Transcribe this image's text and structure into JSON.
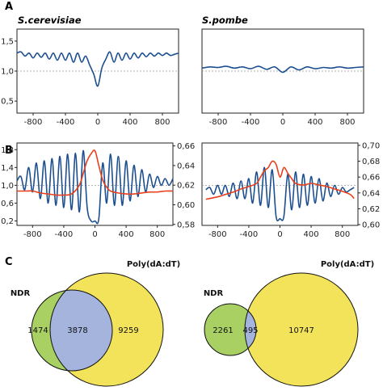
{
  "panels": {
    "a": "A",
    "b": "B",
    "c": "C"
  },
  "species": {
    "left": "S.cerevisiae",
    "right": "S.pombe"
  },
  "colors": {
    "blue": "#1b4f8f",
    "red": "#e8401c",
    "yellow": "#f3e35a",
    "green": "#a8d063",
    "overlap": "#a5b4dd",
    "refline": "#999999"
  },
  "chart_data": [
    {
      "id": "A-left",
      "type": "line",
      "x_ticks": [
        -800,
        -400,
        0,
        400,
        800
      ],
      "xlim": [
        -1000,
        1000
      ],
      "y_ticks": [
        "0,5",
        "1,0",
        "1,5"
      ],
      "ylim": [
        0.3,
        1.7
      ],
      "ref_line": 1.0,
      "series": [
        {
          "color": "blue",
          "x": [
            -1000,
            -950,
            -900,
            -850,
            -800,
            -750,
            -700,
            -650,
            -600,
            -550,
            -500,
            -450,
            -400,
            -350,
            -300,
            -250,
            -200,
            -150,
            -100,
            -50,
            0,
            50,
            100,
            150,
            200,
            250,
            300,
            350,
            400,
            450,
            500,
            550,
            600,
            650,
            700,
            750,
            800,
            850,
            900,
            950,
            1000
          ],
          "y": [
            1.3,
            1.32,
            1.25,
            1.3,
            1.22,
            1.3,
            1.23,
            1.3,
            1.2,
            1.3,
            1.18,
            1.3,
            1.18,
            1.3,
            1.15,
            1.3,
            1.15,
            1.25,
            1.1,
            0.95,
            0.75,
            1.05,
            1.2,
            1.32,
            1.15,
            1.3,
            1.18,
            1.3,
            1.2,
            1.3,
            1.22,
            1.3,
            1.24,
            1.3,
            1.25,
            1.3,
            1.26,
            1.3,
            1.26,
            1.28,
            1.3
          ]
        }
      ]
    },
    {
      "id": "A-right",
      "type": "line",
      "x_ticks": [
        -800,
        -400,
        0,
        400,
        800
      ],
      "xlim": [
        -1000,
        1000
      ],
      "y_ticks": [],
      "ylim": [
        0.3,
        1.7
      ],
      "ref_line": 1.0,
      "series": [
        {
          "color": "blue",
          "x": [
            -1000,
            -900,
            -800,
            -700,
            -600,
            -500,
            -400,
            -300,
            -200,
            -100,
            0,
            100,
            200,
            300,
            400,
            500,
            600,
            700,
            800,
            900,
            1000
          ],
          "y": [
            1.05,
            1.07,
            1.06,
            1.08,
            1.05,
            1.07,
            1.04,
            1.08,
            1.03,
            1.07,
            0.98,
            1.07,
            1.02,
            1.07,
            1.04,
            1.06,
            1.05,
            1.07,
            1.05,
            1.06,
            1.07
          ]
        }
      ]
    },
    {
      "id": "B-left",
      "type": "line",
      "x_ticks": [
        -800,
        -400,
        0,
        400,
        800
      ],
      "xlim": [
        -1000,
        1000
      ],
      "y_ticks": [
        "0,2",
        "0,6",
        "1,0",
        "1,4",
        "1,8"
      ],
      "ylim": [
        0.1,
        1.95
      ],
      "y2_ticks": [
        "0,58",
        "0,60",
        "0,62",
        "0,64",
        "0,66"
      ],
      "y2lim": [
        0.579,
        0.663
      ],
      "ref_line": 1.0,
      "series": [
        {
          "color": "blue",
          "axis": "left",
          "x": [
            -1000,
            -950,
            -900,
            -850,
            -800,
            -750,
            -700,
            -650,
            -600,
            -550,
            -500,
            -450,
            -400,
            -350,
            -300,
            -250,
            -200,
            -150,
            -100,
            -50,
            0,
            50,
            100,
            150,
            200,
            250,
            300,
            350,
            400,
            450,
            500,
            550,
            600,
            650,
            700,
            750,
            800,
            850,
            900,
            950,
            1000
          ],
          "y": [
            1.1,
            1.2,
            0.9,
            1.4,
            0.85,
            1.5,
            0.7,
            1.55,
            0.6,
            1.6,
            0.55,
            1.65,
            0.5,
            1.7,
            0.45,
            1.72,
            0.4,
            1.78,
            0.5,
            0.2,
            0.2,
            0.25,
            1.5,
            0.6,
            1.7,
            0.55,
            1.65,
            0.55,
            1.55,
            0.65,
            1.45,
            0.75,
            1.35,
            0.85,
            1.25,
            0.95,
            1.2,
            1.0,
            1.15,
            1.0,
            1.15
          ]
        },
        {
          "color": "red",
          "axis": "right",
          "x": [
            -1000,
            -900,
            -800,
            -700,
            -600,
            -500,
            -400,
            -300,
            -200,
            -150,
            -100,
            -50,
            0,
            50,
            100,
            150,
            200,
            300,
            400,
            500,
            600,
            700,
            800,
            900,
            1000
          ],
          "y": [
            0.614,
            0.614,
            0.614,
            0.612,
            0.611,
            0.61,
            0.61,
            0.611,
            0.62,
            0.632,
            0.645,
            0.652,
            0.655,
            0.64,
            0.625,
            0.618,
            0.614,
            0.612,
            0.611,
            0.611,
            0.612,
            0.613,
            0.613,
            0.614,
            0.614
          ]
        }
      ]
    },
    {
      "id": "B-right",
      "type": "line",
      "x_ticks": [
        -800,
        -400,
        0,
        400,
        800
      ],
      "xlim": [
        -1000,
        1000
      ],
      "y_ticks": [],
      "ylim": [
        0.1,
        1.95
      ],
      "y2_ticks": [
        "0,60",
        "0,62",
        "0,64",
        "0,66",
        "0,68",
        "0,70"
      ],
      "y2lim": [
        0.599,
        0.703
      ],
      "ref_line": 1.0,
      "series": [
        {
          "color": "blue",
          "axis": "left",
          "x": [
            -950,
            -900,
            -850,
            -800,
            -750,
            -700,
            -650,
            -600,
            -550,
            -500,
            -450,
            -400,
            -350,
            -300,
            -250,
            -200,
            -150,
            -100,
            -50,
            0,
            50,
            100,
            150,
            200,
            250,
            300,
            350,
            400,
            450,
            500,
            550,
            600,
            650,
            700,
            750,
            800,
            850,
            900,
            950
          ],
          "y": [
            0.9,
            0.95,
            0.8,
            1.0,
            0.8,
            1.0,
            0.75,
            1.05,
            0.7,
            1.1,
            0.7,
            1.15,
            0.6,
            1.3,
            0.55,
            1.4,
            0.5,
            1.35,
            0.3,
            0.25,
            0.3,
            1.25,
            0.45,
            1.3,
            0.5,
            1.25,
            0.55,
            1.2,
            0.6,
            1.15,
            0.65,
            1.05,
            0.75,
            1.0,
            0.8,
            0.95,
            0.85,
            0.9,
            0.95
          ]
        },
        {
          "color": "red",
          "axis": "right",
          "x": [
            -950,
            -800,
            -700,
            -600,
            -500,
            -400,
            -300,
            -250,
            -200,
            -150,
            -100,
            -50,
            0,
            50,
            100,
            150,
            200,
            300,
            400,
            500,
            600,
            700,
            800,
            900,
            950
          ],
          "y": [
            0.632,
            0.635,
            0.638,
            0.641,
            0.645,
            0.648,
            0.652,
            0.66,
            0.668,
            0.672,
            0.68,
            0.676,
            0.66,
            0.672,
            0.665,
            0.658,
            0.652,
            0.65,
            0.652,
            0.65,
            0.648,
            0.645,
            0.642,
            0.638,
            0.633
          ]
        }
      ]
    },
    {
      "id": "C-left",
      "type": "venn",
      "sets": [
        {
          "name": "NDR",
          "color": "green",
          "only": "1474"
        },
        {
          "name": "Poly(dA:dT)",
          "color": "yellow",
          "only": "9259"
        }
      ],
      "intersection": "3878"
    },
    {
      "id": "C-right",
      "type": "venn",
      "sets": [
        {
          "name": "NDR",
          "color": "green",
          "only": "2261"
        },
        {
          "name": "Poly(dA:dT)",
          "color": "yellow",
          "only": "10747"
        }
      ],
      "intersection": "495"
    }
  ]
}
